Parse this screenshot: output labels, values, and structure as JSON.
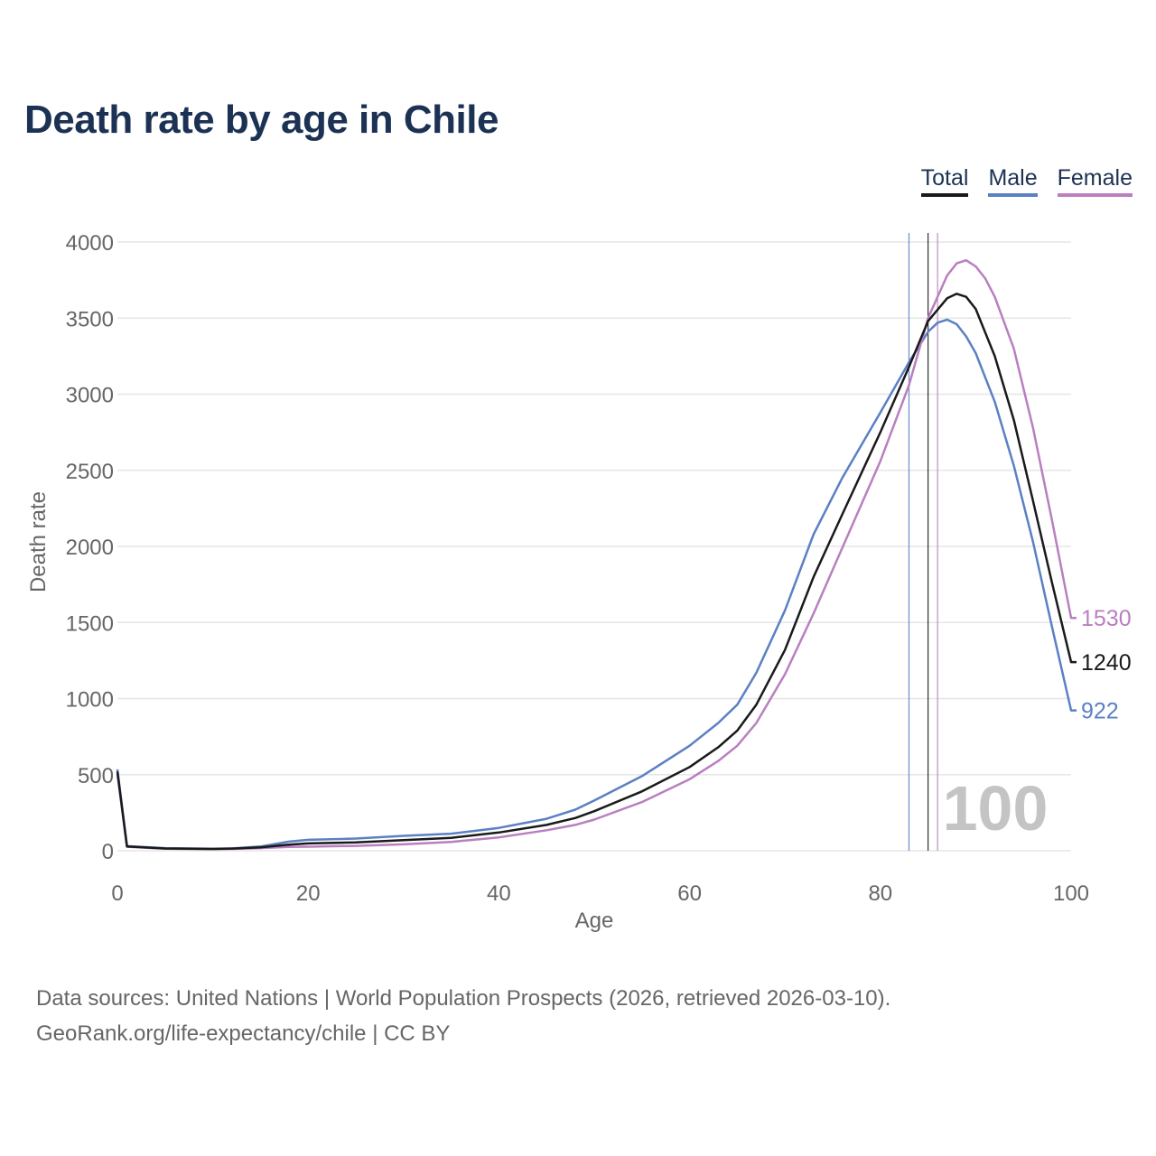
{
  "chart_data": {
    "type": "line",
    "title": "Death rate by age in Chile",
    "xlabel": "Age",
    "ylabel": "Death rate",
    "xlim": [
      0,
      100
    ],
    "ylim": [
      0,
      4000
    ],
    "x_ticks": [
      "0",
      "20",
      "40",
      "60",
      "80",
      "100"
    ],
    "y_ticks": [
      "0",
      "500",
      "1000",
      "1500",
      "2000",
      "2500",
      "3000",
      "3500",
      "4000"
    ],
    "x_tick_values": [
      0,
      20,
      40,
      60,
      80,
      100
    ],
    "y_tick_values": [
      0,
      500,
      1000,
      1500,
      2000,
      2500,
      3000,
      3500,
      4000
    ],
    "grid": true,
    "legend_position": "top-right",
    "highlight_age": "100",
    "series": [
      {
        "name": "Total",
        "color": "#1a1a1a",
        "end_label": "1240",
        "life_expectancy_line": 85,
        "x": [
          0,
          1,
          5,
          10,
          12,
          15,
          18,
          20,
          25,
          30,
          35,
          40,
          45,
          48,
          50,
          55,
          60,
          63,
          65,
          67,
          70,
          73,
          76,
          80,
          83,
          85,
          87,
          88,
          89,
          90,
          92,
          94,
          96,
          98,
          100
        ],
        "y": [
          520,
          28,
          15,
          12,
          14,
          22,
          40,
          48,
          55,
          70,
          85,
          120,
          170,
          215,
          260,
          390,
          550,
          680,
          790,
          960,
          1320,
          1800,
          2210,
          2750,
          3180,
          3480,
          3630,
          3660,
          3640,
          3560,
          3250,
          2830,
          2300,
          1760,
          1240
        ]
      },
      {
        "name": "Male",
        "color": "#5b80c4",
        "end_label": "922",
        "life_expectancy_line": 83,
        "x": [
          0,
          1,
          5,
          10,
          12,
          15,
          18,
          20,
          25,
          30,
          35,
          40,
          45,
          48,
          50,
          55,
          60,
          63,
          65,
          67,
          70,
          73,
          76,
          80,
          83,
          85,
          86,
          87,
          88,
          89,
          90,
          92,
          94,
          96,
          98,
          100
        ],
        "y": [
          535,
          30,
          17,
          13,
          15,
          28,
          60,
          72,
          80,
          98,
          112,
          150,
          210,
          270,
          330,
          490,
          690,
          840,
          960,
          1170,
          1580,
          2080,
          2450,
          2880,
          3210,
          3410,
          3470,
          3490,
          3460,
          3380,
          3270,
          2950,
          2530,
          2030,
          1470,
          922
        ]
      },
      {
        "name": "Female",
        "color": "#b97fc0",
        "end_label": "1530",
        "life_expectancy_line": 86,
        "x": [
          0,
          1,
          5,
          10,
          12,
          15,
          18,
          20,
          25,
          30,
          35,
          40,
          45,
          48,
          50,
          55,
          60,
          63,
          65,
          67,
          70,
          73,
          76,
          80,
          83,
          85,
          87,
          88,
          89,
          90,
          91,
          92,
          94,
          96,
          98,
          100
        ],
        "y": [
          505,
          26,
          13,
          10,
          12,
          17,
          25,
          27,
          32,
          42,
          58,
          88,
          135,
          170,
          205,
          320,
          470,
          590,
          690,
          840,
          1160,
          1560,
          1990,
          2560,
          3060,
          3500,
          3780,
          3860,
          3880,
          3840,
          3760,
          3640,
          3300,
          2780,
          2170,
          1530
        ]
      }
    ]
  },
  "footer": {
    "line1": "Data sources: United Nations | World Population Prospects (2026, retrieved 2026-03-10).",
    "line2": "GeoRank.org/life-expectancy/chile | CC BY"
  }
}
